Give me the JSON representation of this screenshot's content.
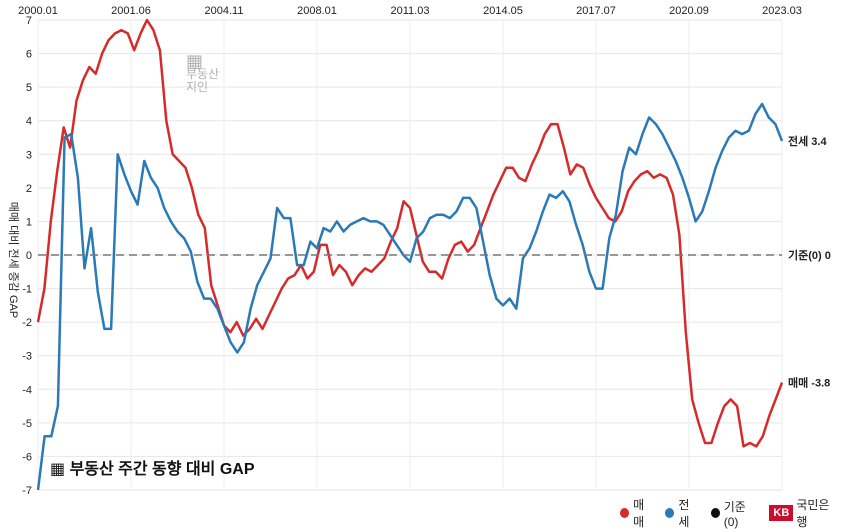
{
  "brand": "KB",
  "source_label": "국민은행",
  "watermark_line1": "부동산",
  "watermark_line2": "지인",
  "footer_title": "부동산 주간 동향 대비 GAP",
  "y_axis_label": "매매 대비 전세 증감 GAP",
  "colors": {
    "sale": "#d52b2b",
    "jeonse": "#2a7ab8",
    "baseline": "#777777"
  },
  "chart_data": {
    "type": "line",
    "x_ticks": [
      "2000.01",
      "2001.06",
      "2004.11",
      "2008.01",
      "2011.03",
      "2014.05",
      "2017.07",
      "2020.09",
      "2023.03"
    ],
    "y_ticks": [
      7,
      6,
      5,
      4,
      3,
      2,
      1,
      0,
      -1,
      -2,
      -3,
      -4,
      -5,
      -6,
      -7
    ],
    "ylim": [
      7,
      -7
    ],
    "series": [
      {
        "name": "매매",
        "end_label": "매매 -3.8",
        "values": [
          -2.0,
          -1.0,
          1.0,
          2.5,
          3.8,
          3.2,
          4.6,
          5.2,
          5.6,
          5.4,
          6.0,
          6.4,
          6.6,
          6.7,
          6.6,
          6.1,
          6.6,
          7.0,
          6.7,
          6.1,
          4.0,
          3.0,
          2.8,
          2.6,
          2.0,
          1.2,
          0.8,
          -0.9,
          -1.5,
          -2.1,
          -2.3,
          -2.0,
          -2.4,
          -2.2,
          -1.9,
          -2.2,
          -1.8,
          -1.4,
          -1.0,
          -0.7,
          -0.6,
          -0.3,
          -0.7,
          -0.5,
          0.3,
          0.3,
          -0.6,
          -0.3,
          -0.5,
          -0.9,
          -0.6,
          -0.4,
          -0.5,
          -0.3,
          -0.1,
          0.4,
          0.8,
          1.6,
          1.4,
          0.6,
          -0.2,
          -0.5,
          -0.5,
          -0.7,
          -0.1,
          0.3,
          0.4,
          0.1,
          0.3,
          0.8,
          1.3,
          1.8,
          2.2,
          2.6,
          2.6,
          2.3,
          2.2,
          2.7,
          3.1,
          3.6,
          3.9,
          3.9,
          3.2,
          2.4,
          2.7,
          2.6,
          2.1,
          1.7,
          1.4,
          1.1,
          1.0,
          1.3,
          1.9,
          2.2,
          2.4,
          2.5,
          2.3,
          2.4,
          2.3,
          1.8,
          0.6,
          -2.3,
          -4.3,
          -5.0,
          -5.6,
          -5.6,
          -5.0,
          -4.5,
          -4.3,
          -4.5,
          -5.7,
          -5.6,
          -5.7,
          -5.4,
          -4.8,
          -4.3,
          -3.8
        ],
        "color": "#d52b2b"
      },
      {
        "name": "전세",
        "end_label": "전세 3.4",
        "values": [
          -7.0,
          -5.4,
          -5.4,
          -4.5,
          3.5,
          3.6,
          2.3,
          -0.4,
          0.8,
          -1.1,
          -2.2,
          -2.2,
          3.0,
          2.4,
          1.9,
          1.5,
          2.8,
          2.3,
          2.0,
          1.4,
          1.0,
          0.7,
          0.5,
          0.1,
          -0.8,
          -1.3,
          -1.3,
          -1.6,
          -2.1,
          -2.6,
          -2.9,
          -2.6,
          -1.6,
          -0.9,
          -0.5,
          -0.1,
          1.4,
          1.1,
          1.1,
          -0.3,
          -0.3,
          0.4,
          0.2,
          0.8,
          0.7,
          1.0,
          0.7,
          0.9,
          1.0,
          1.1,
          1.0,
          1.0,
          0.9,
          0.6,
          0.3,
          0.0,
          -0.2,
          0.5,
          0.7,
          1.1,
          1.2,
          1.2,
          1.1,
          1.3,
          1.7,
          1.7,
          1.4,
          0.4,
          -0.6,
          -1.3,
          -1.5,
          -1.3,
          -1.6,
          -0.1,
          0.2,
          0.7,
          1.3,
          1.8,
          1.7,
          1.9,
          1.6,
          0.9,
          0.3,
          -0.5,
          -1.0,
          -1.0,
          0.5,
          1.2,
          2.5,
          3.2,
          3.0,
          3.6,
          4.1,
          3.9,
          3.6,
          3.2,
          2.8,
          2.3,
          1.7,
          1.0,
          1.3,
          1.9,
          2.6,
          3.1,
          3.5,
          3.7,
          3.6,
          3.7,
          4.2,
          4.5,
          4.1,
          3.9,
          3.4
        ],
        "color": "#2a7ab8"
      },
      {
        "name": "기준(0)",
        "end_label": "기준(0) 0",
        "values": [
          0,
          0
        ],
        "color": "#777777"
      }
    ],
    "legend": [
      "매매",
      "전세",
      "기준(0)"
    ],
    "legend_position": "bottom-right",
    "grid": true
  }
}
